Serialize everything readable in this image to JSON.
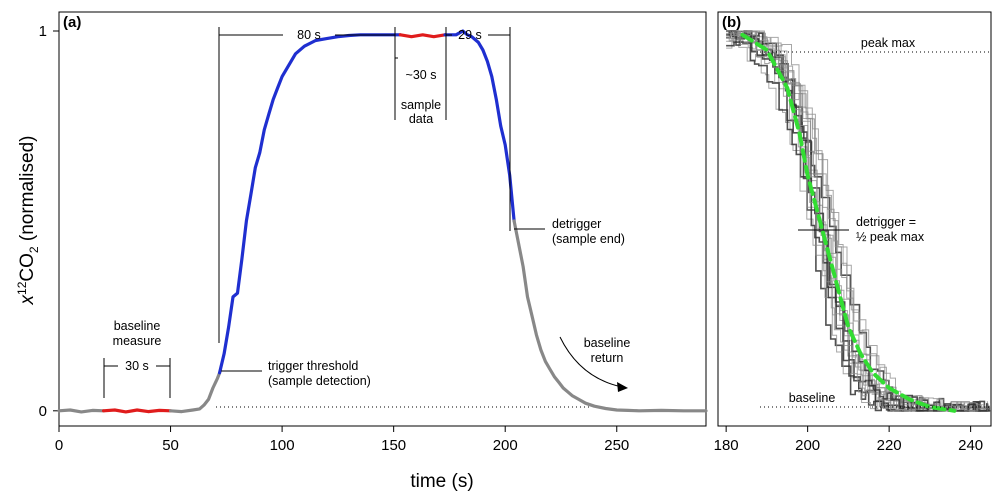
{
  "chart_data": [
    {
      "panel_label": "(a)",
      "type": "line",
      "xlim": [
        0,
        290
      ],
      "ylim": [
        -0.04,
        1.05
      ],
      "x_ticks": [
        0,
        50,
        100,
        150,
        200,
        250
      ],
      "x_tick_labels": [
        "0",
        "50",
        "100",
        "150",
        "200",
        "250"
      ],
      "y_ticks": [
        0,
        1
      ],
      "y_tick_labels": [
        "0",
        "1"
      ],
      "ylabel_prefix": "x",
      "ylabel_sup": "12",
      "ylabel_mid": "CO",
      "ylabel_sub": "2",
      "ylabel_suffix": " (normalised)",
      "xlabel": "time (s)",
      "series": [
        {
          "color": "#888888",
          "x": [
            0,
            5,
            10,
            15,
            20
          ],
          "y": [
            0,
            0.002,
            -0.003,
            0.001,
            0
          ]
        },
        {
          "color": "#e01c1c",
          "x": [
            20,
            25,
            30,
            35,
            40,
            45,
            50
          ],
          "y": [
            0,
            0.002,
            -0.003,
            0.002,
            -0.002,
            0.001,
            0
          ]
        },
        {
          "color": "#888888",
          "x": [
            50,
            55,
            60,
            63,
            65,
            67,
            69,
            71,
            72
          ],
          "y": [
            0,
            -0.002,
            0.002,
            0.005,
            0.015,
            0.03,
            0.06,
            0.085,
            0.1
          ]
        },
        {
          "color": "#1f2fd0",
          "x": [
            72,
            74,
            76,
            78,
            80,
            82,
            84,
            86,
            88,
            90,
            92,
            94,
            96,
            98,
            100,
            103,
            106,
            110,
            115,
            120,
            125,
            130,
            135,
            140,
            145,
            150,
            153
          ],
          "y": [
            0.1,
            0.15,
            0.22,
            0.3,
            0.31,
            0.4,
            0.5,
            0.57,
            0.64,
            0.68,
            0.74,
            0.78,
            0.82,
            0.85,
            0.88,
            0.91,
            0.94,
            0.96,
            0.975,
            0.98,
            0.985,
            0.988,
            0.99,
            0.99,
            0.99,
            0.99,
            0.99
          ]
        },
        {
          "color": "#e01c1c",
          "x": [
            153,
            158,
            163,
            168,
            173
          ],
          "y": [
            0.99,
            0.985,
            0.99,
            0.985,
            0.99
          ]
        },
        {
          "color": "#1f2fd0",
          "x": [
            173,
            178,
            181,
            183,
            185,
            188,
            190,
            192,
            194,
            196,
            198,
            200,
            202,
            204
          ],
          "y": [
            0.99,
            0.99,
            1.0,
            0.99,
            0.985,
            0.97,
            0.95,
            0.92,
            0.88,
            0.82,
            0.75,
            0.7,
            0.62,
            0.5
          ]
        },
        {
          "color": "#888888",
          "x": [
            204,
            206,
            208,
            210,
            212,
            214,
            216,
            218,
            220,
            222,
            224,
            226,
            228,
            230,
            233,
            236,
            240,
            245,
            250,
            255,
            260,
            270,
            280,
            290
          ],
          "y": [
            0.5,
            0.44,
            0.38,
            0.3,
            0.25,
            0.2,
            0.16,
            0.13,
            0.11,
            0.09,
            0.075,
            0.06,
            0.05,
            0.04,
            0.03,
            0.02,
            0.012,
            0.006,
            0.002,
            0.001,
            0,
            0.001,
            0,
            0
          ]
        }
      ],
      "annotations": {
        "baseline_measure_l1": "baseline",
        "baseline_measure_l2": "measure",
        "baseline_30s": "30 s",
        "span_80s": "80 s",
        "span_30s": "~30 s",
        "sample_data_l1": "sample",
        "sample_data_l2": "data",
        "span_29s": "29 s",
        "trigger_l1": "trigger threshold",
        "trigger_l2": "(sample detection)",
        "detrigger_l1": "detrigger",
        "detrigger_l2": "(sample end)",
        "baseline_return_l1": "baseline",
        "baseline_return_l2": "return"
      }
    },
    {
      "panel_label": "(b)",
      "type": "line",
      "xlim": [
        178,
        245
      ],
      "ylim": [
        -0.04,
        1.05
      ],
      "x_ticks": [
        180,
        200,
        220,
        240
      ],
      "x_tick_labels": [
        "180",
        "200",
        "220",
        "240"
      ],
      "midpoint": 203,
      "fit_series": {
        "color": "#33dd33",
        "x": [
          184,
          190,
          195,
          198,
          200,
          202,
          203,
          204,
          206,
          208,
          210,
          213,
          216,
          220,
          225,
          230,
          236
        ],
        "y": [
          0.99,
          0.95,
          0.85,
          0.73,
          0.62,
          0.54,
          0.5,
          0.46,
          0.38,
          0.3,
          0.22,
          0.15,
          0.1,
          0.06,
          0.03,
          0.01,
          0.0
        ]
      },
      "annotations": {
        "peak_max": "peak max",
        "detrigger_l1": "detrigger =",
        "detrigger_l2": "½ peak max",
        "baseline": "baseline"
      }
    }
  ]
}
